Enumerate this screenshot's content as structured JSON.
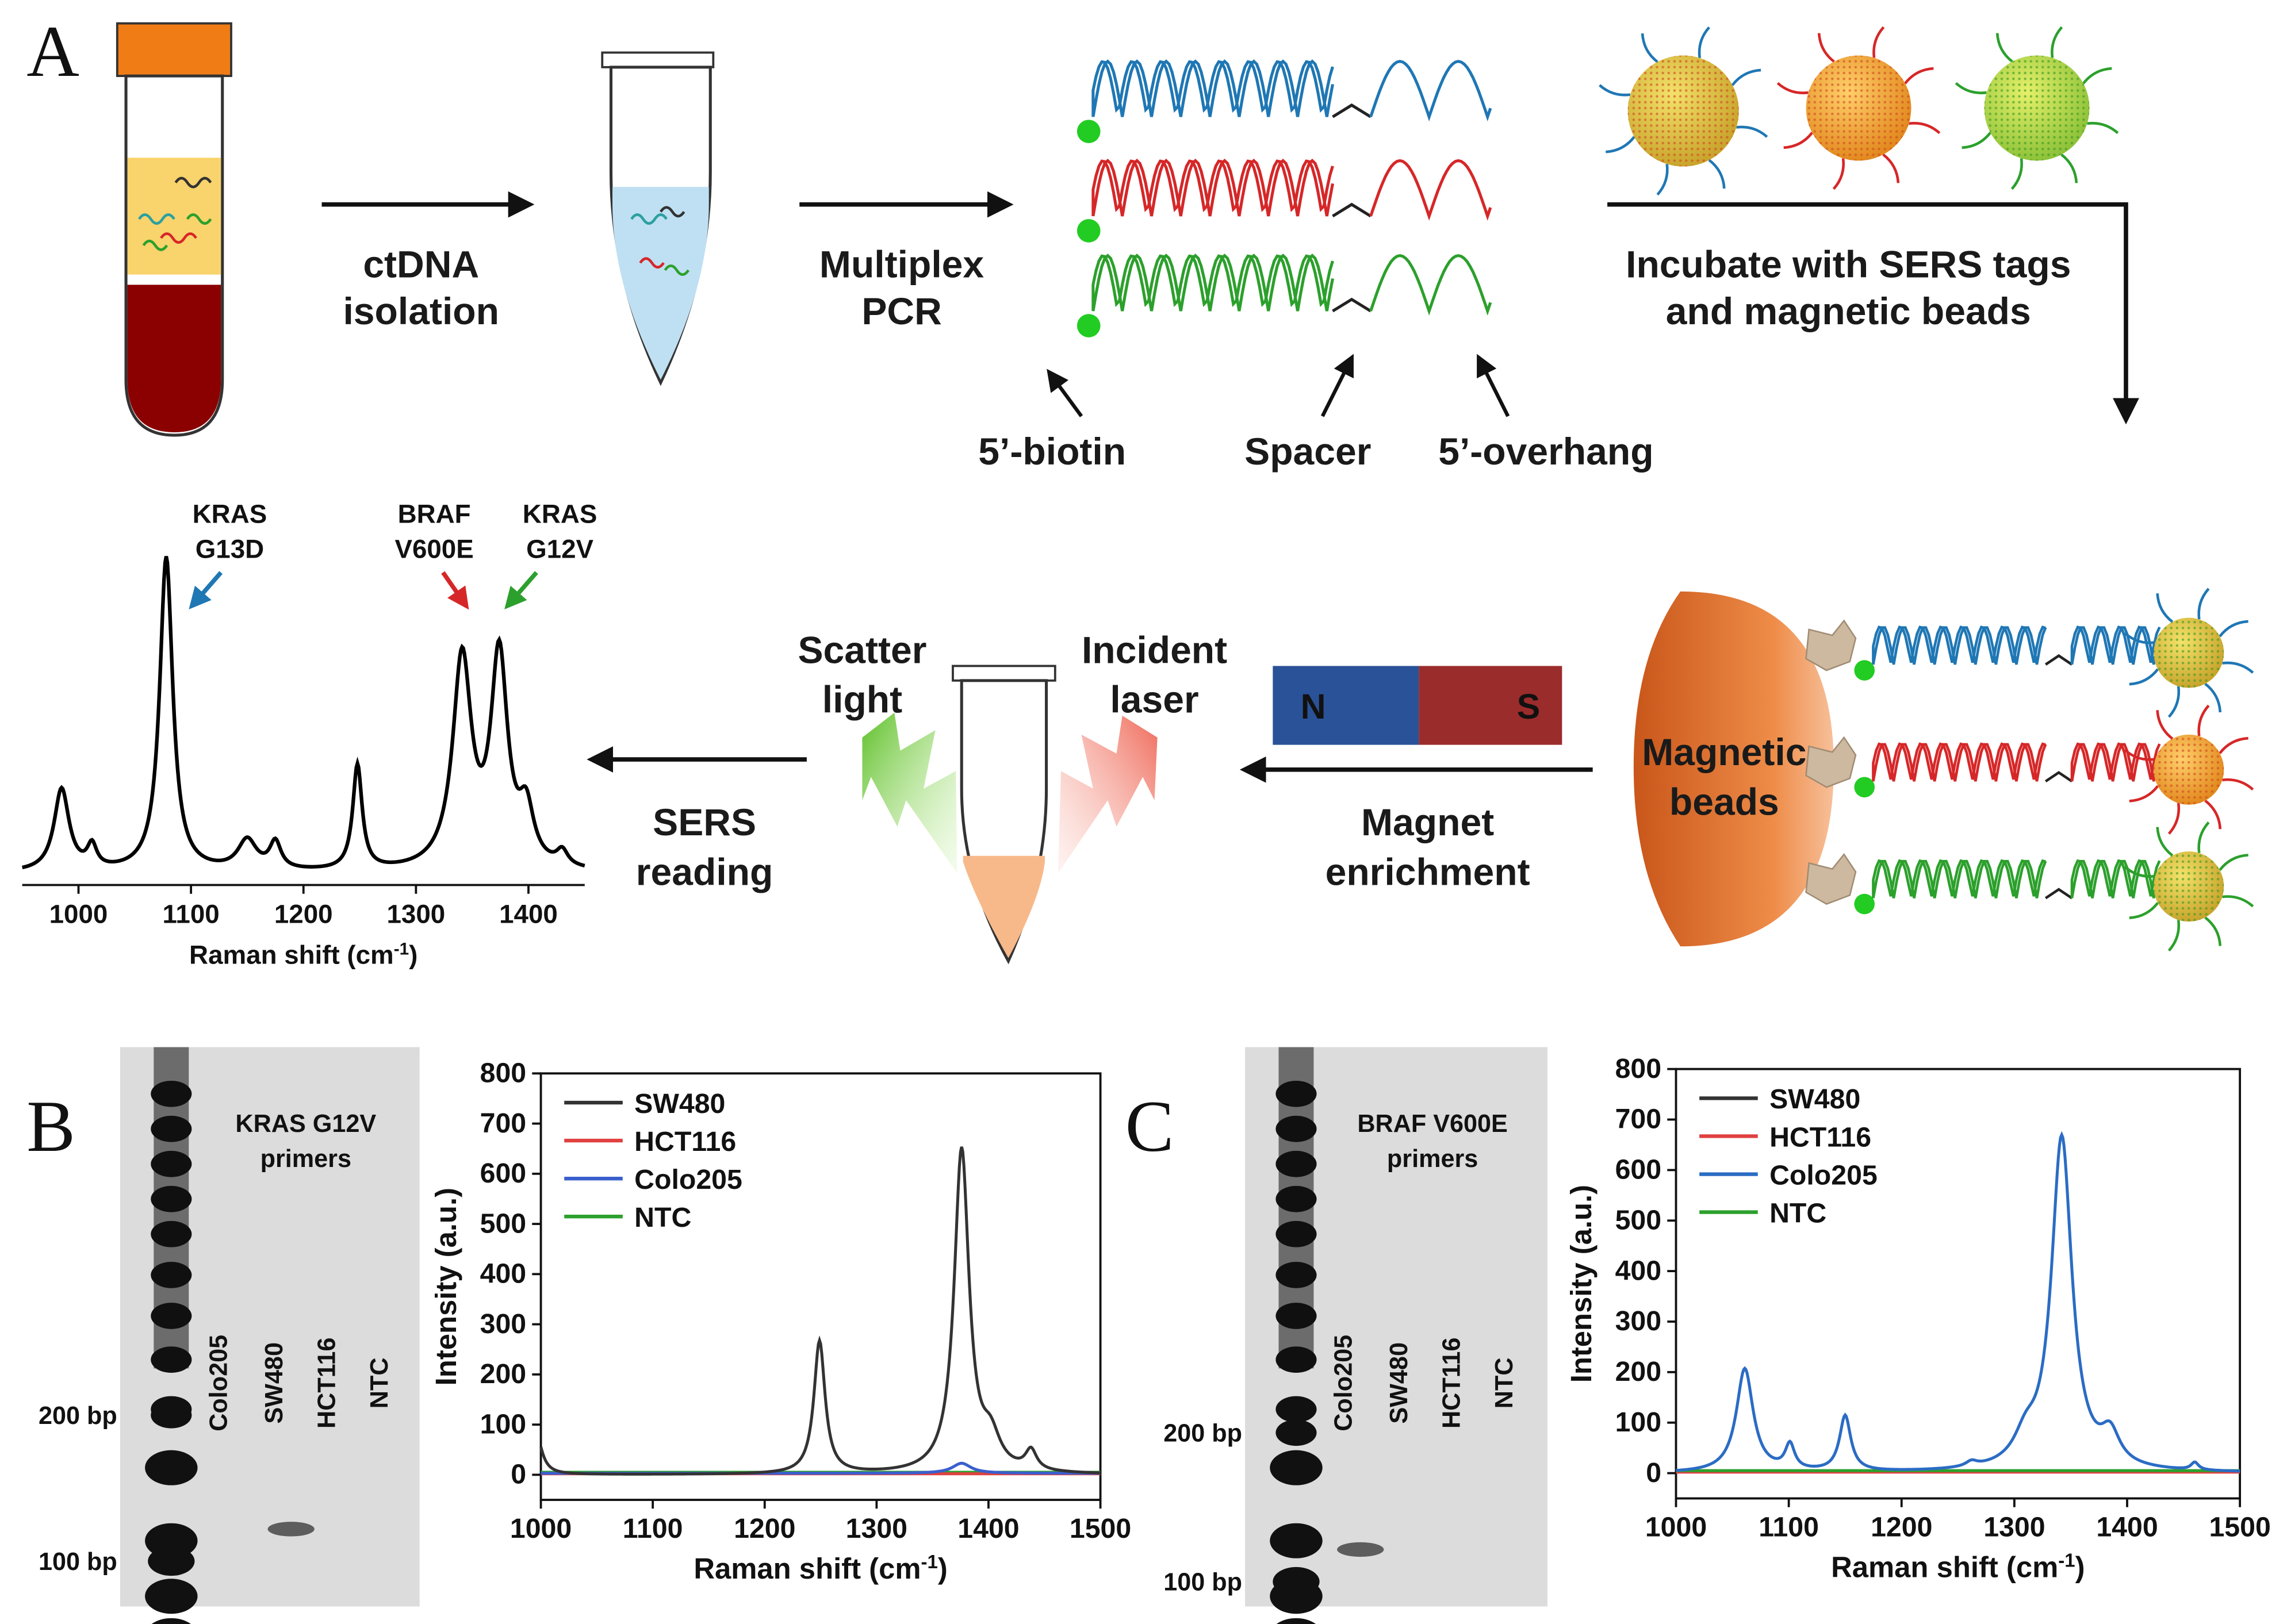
{
  "panels": {
    "a": "A",
    "b": "B",
    "c": "C"
  },
  "panel_a": {
    "steps": {
      "ctdna_isolation": [
        "ctDNA",
        "isolation"
      ],
      "multiplex_pcr": [
        "Multiplex",
        "PCR"
      ],
      "incubate": [
        "Incubate with SERS tags",
        "and magnetic beads"
      ],
      "magnet_enrichment": [
        "Magnet",
        "enrichment"
      ],
      "sers_reading": [
        "SERS",
        "reading"
      ]
    },
    "amplicon_labels": {
      "biotin": "5’-biotin",
      "spacer": "Spacer",
      "overhang": "5’-overhang"
    },
    "magnet": {
      "north": "N",
      "south": "S"
    },
    "beads_label": [
      "Magnetic",
      "beads"
    ],
    "light_labels": {
      "scatter": [
        "Scatter",
        "light"
      ],
      "incident": [
        "Incident",
        "laser"
      ]
    },
    "strand_colors": [
      "#1f77b4",
      "#d62728",
      "#2ca02c"
    ],
    "colors": {
      "tube_cap": "#f07c16",
      "blood": "#8b0000",
      "plasma": "#f9d36b",
      "bead": "#e07a2e",
      "magnet_n": "#2a5298",
      "magnet_s": "#9b2c2c",
      "biotin": "#22cc22"
    }
  },
  "gels": [
    {
      "title": [
        "KRAS G12V",
        "primers"
      ],
      "ladder_labels": [
        "200 bp",
        "100 bp"
      ],
      "lanes": [
        "Colo205",
        "SW480",
        "HCT116",
        "NTC"
      ]
    },
    {
      "title": [
        "BRAF V600E",
        "primers"
      ],
      "ladder_labels": [
        "200 bp",
        "100 bp"
      ],
      "lanes": [
        "Colo205",
        "SW480",
        "HCT116",
        "NTC"
      ]
    }
  ],
  "chart_data": [
    {
      "id": "A-spectrum",
      "type": "line",
      "title": "",
      "xlabel": "Raman shift (cm-1)",
      "ylabel": "",
      "xlim": [
        950,
        1450
      ],
      "xticks": [
        1000,
        1100,
        1200,
        1300,
        1400
      ],
      "y_scale": "arbitrary",
      "peak_labels": [
        {
          "text": [
            "KRAS",
            "G13D"
          ],
          "x": 1078,
          "color": "#1f77b4"
        },
        {
          "text": [
            "BRAF",
            "V600E"
          ],
          "x": 1341,
          "color": "#d62728"
        },
        {
          "text": [
            "KRAS",
            "G12V"
          ],
          "x": 1374,
          "color": "#2ca02c"
        }
      ],
      "series": [
        {
          "name": "spectrum",
          "color": "#000000",
          "baseline": 8,
          "peaks": [
            [
              985,
              55,
              8
            ],
            [
              1012,
              15,
              5
            ],
            [
              1078,
              210,
              7
            ],
            [
              1150,
              20,
              10
            ],
            [
              1175,
              18,
              6
            ],
            [
              1248,
              70,
              5
            ],
            [
              1341,
              140,
              10
            ],
            [
              1374,
              140,
              9
            ],
            [
              1398,
              35,
              8
            ],
            [
              1430,
              10,
              6
            ]
          ]
        }
      ]
    },
    {
      "id": "B-spectrum",
      "type": "line",
      "title": "",
      "xlabel": "Raman shift (cm-1)",
      "ylabel": "Intensity (a.u.)",
      "xlim": [
        1000,
        1500
      ],
      "ylim": [
        -50,
        800
      ],
      "xticks": [
        1000,
        1100,
        1200,
        1300,
        1400,
        1500
      ],
      "yticks": [
        0,
        100,
        200,
        300,
        400,
        500,
        600,
        700,
        800
      ],
      "series": [
        {
          "name": "SW480",
          "color": "#333333",
          "baseline": 0,
          "peaks": [
            [
              996,
              80,
              6
            ],
            [
              1249,
              265,
              6
            ],
            [
              1376,
              645,
              8
            ],
            [
              1402,
              60,
              10
            ],
            [
              1438,
              40,
              6
            ]
          ]
        },
        {
          "name": "HCT116",
          "color": "#e04040",
          "baseline": 2,
          "peaks": []
        },
        {
          "name": "Colo205",
          "color": "#3a5fcd",
          "baseline": 3,
          "peaks": [
            [
              1376,
              20,
              10
            ]
          ]
        },
        {
          "name": "NTC",
          "color": "#2ca02c",
          "baseline": 5,
          "peaks": []
        }
      ]
    },
    {
      "id": "C-spectrum",
      "type": "line",
      "title": "",
      "xlabel": "Raman shift (cm-1)",
      "ylabel": "Intensity (a.u.)",
      "xlim": [
        1000,
        1500
      ],
      "ylim": [
        -50,
        800
      ],
      "xticks": [
        1000,
        1100,
        1200,
        1300,
        1400,
        1500
      ],
      "yticks": [
        0,
        100,
        200,
        300,
        400,
        500,
        600,
        700,
        800
      ],
      "series": [
        {
          "name": "SW480",
          "color": "#333333",
          "baseline": 3,
          "peaks": []
        },
        {
          "name": "HCT116",
          "color": "#e04040",
          "baseline": 2,
          "peaks": []
        },
        {
          "name": "Colo205",
          "color": "#2b6cc4",
          "baseline": 0,
          "peaks": [
            [
              1061,
              205,
              9
            ],
            [
              1101,
              50,
              5
            ],
            [
              1150,
              110,
              6
            ],
            [
              1262,
              10,
              6
            ],
            [
              1310,
              50,
              12
            ],
            [
              1342,
              660,
              11
            ],
            [
              1385,
              60,
              10
            ],
            [
              1460,
              15,
              4
            ]
          ]
        },
        {
          "name": "NTC",
          "color": "#2ca02c",
          "baseline": 5,
          "peaks": []
        }
      ]
    }
  ]
}
